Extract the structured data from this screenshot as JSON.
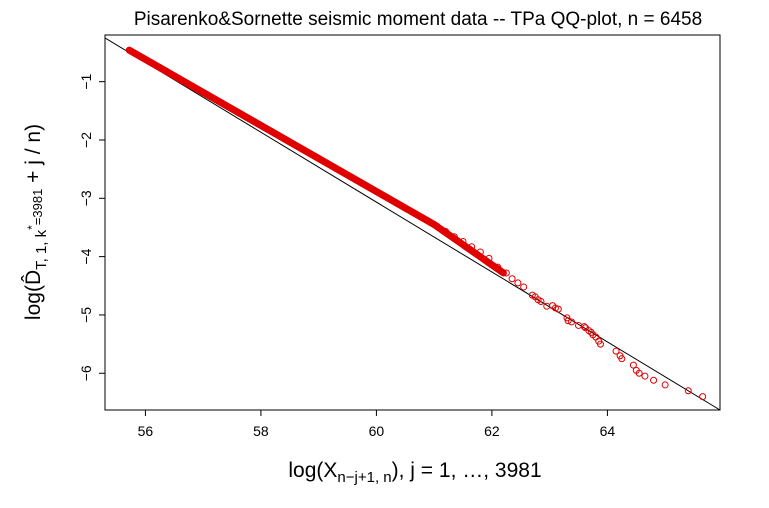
{
  "chart_data": {
    "type": "scatter",
    "title": "Pisarenko&Sornette seismic moment data -- TPa QQ-plot, n = 6458",
    "xlabel": "log(Xₙ₋ⱼ₊₁, ₙ), j = 1, …, 3981",
    "ylabel": "log(D̂T, 1, k*=3981 + j/n)",
    "xlabel_parts": {
      "main": "log(X",
      "sub": "n−j+1, n",
      "rest": "), j = 1, …, 3981"
    },
    "ylabel_parts": {
      "main": "log(D̂",
      "sub": "T, 1, k",
      "sup": "*",
      "subsub": "=3981",
      "rest": " + j / n)"
    },
    "xlim": [
      55.3,
      65.95
    ],
    "ylim": [
      -6.63,
      -0.2
    ],
    "x_ticks": [
      56,
      58,
      60,
      62,
      64
    ],
    "y_ticks": [
      -1,
      -2,
      -3,
      -4,
      -5,
      -6
    ],
    "grid": false,
    "legend": "none",
    "point_color": "#e00000",
    "line_color": "#000000",
    "reference_line": {
      "x": [
        55.3,
        65.95
      ],
      "y": [
        -0.25,
        -6.63
      ]
    },
    "dense_segments": [
      {
        "x": [
          55.72,
          61.0
        ],
        "y": [
          -0.46,
          -3.45
        ]
      },
      {
        "x": [
          61.0,
          62.2
        ],
        "y": [
          -3.45,
          -4.28
        ]
      }
    ],
    "points": [
      [
        61.05,
        -3.48
      ],
      [
        61.2,
        -3.57
      ],
      [
        61.35,
        -3.66
      ],
      [
        61.5,
        -3.74
      ],
      [
        61.65,
        -3.83
      ],
      [
        61.8,
        -3.92
      ],
      [
        61.95,
        -4.03
      ],
      [
        62.1,
        -4.18
      ],
      [
        62.25,
        -4.28
      ],
      [
        62.35,
        -4.38
      ],
      [
        62.45,
        -4.45
      ],
      [
        62.55,
        -4.52
      ],
      [
        62.7,
        -4.66
      ],
      [
        62.75,
        -4.69
      ],
      [
        62.8,
        -4.74
      ],
      [
        62.85,
        -4.77
      ],
      [
        62.95,
        -4.85
      ],
      [
        63.05,
        -4.84
      ],
      [
        63.1,
        -4.88
      ],
      [
        63.15,
        -4.9
      ],
      [
        63.3,
        -5.05
      ],
      [
        63.32,
        -5.1
      ],
      [
        63.38,
        -5.12
      ],
      [
        63.5,
        -5.18
      ],
      [
        63.6,
        -5.2
      ],
      [
        63.62,
        -5.22
      ],
      [
        63.68,
        -5.27
      ],
      [
        63.72,
        -5.3
      ],
      [
        63.75,
        -5.34
      ],
      [
        63.8,
        -5.38
      ],
      [
        63.85,
        -5.45
      ],
      [
        63.88,
        -5.5
      ],
      [
        64.15,
        -5.62
      ],
      [
        64.22,
        -5.7
      ],
      [
        64.25,
        -5.75
      ],
      [
        64.45,
        -5.86
      ],
      [
        64.5,
        -5.95
      ],
      [
        64.55,
        -6.0
      ],
      [
        64.65,
        -6.05
      ],
      [
        64.8,
        -6.12
      ],
      [
        65.0,
        -6.2
      ],
      [
        65.4,
        -6.3
      ],
      [
        65.65,
        -6.4
      ]
    ]
  }
}
